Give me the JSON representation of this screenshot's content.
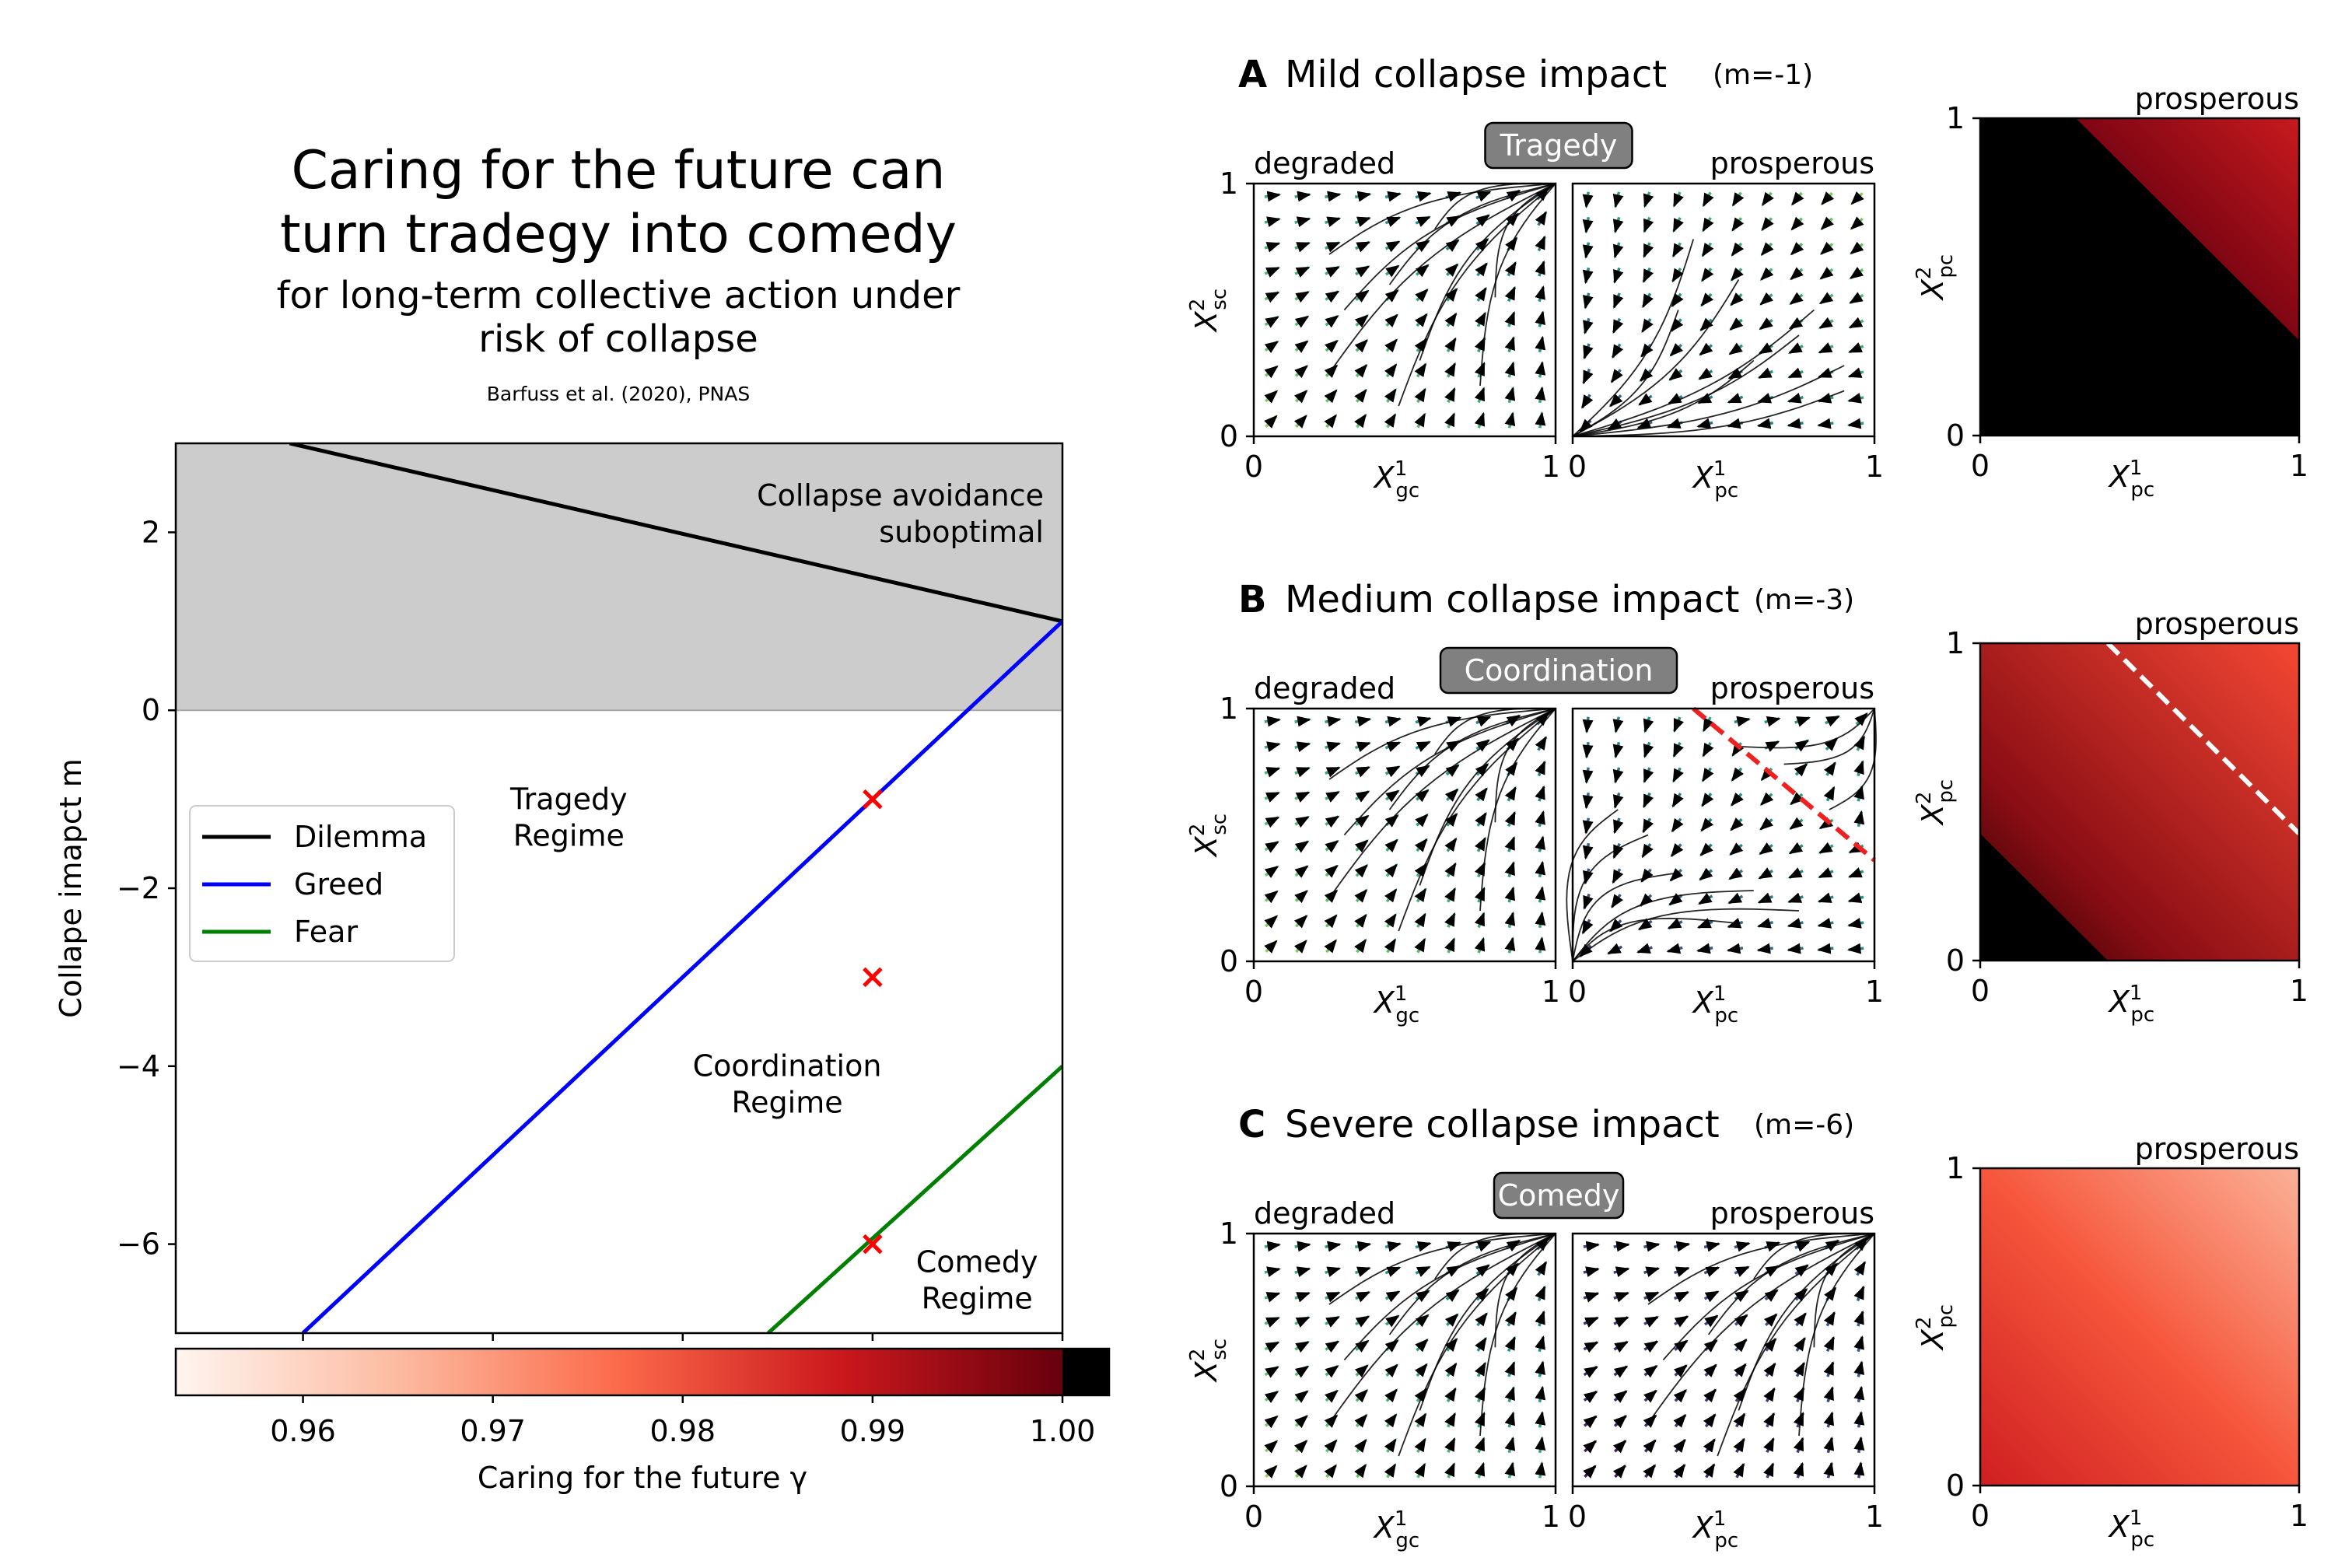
{
  "header": {
    "title_line1": "Caring for the future can",
    "title_line2": "turn tradegy into comedy",
    "subtitle_line1": "for long-term collective action under",
    "subtitle_line2": "risk of collapse",
    "citation": "Barfuss et al. (2020), PNAS"
  },
  "colors": {
    "dilemma": "#000000",
    "greed": "#0000ff",
    "fear": "#008000",
    "marker": "#ff0000",
    "shaded": "#cccccc",
    "badge": "#808080",
    "separatrix_main": "#ee2020",
    "separatrix_heat": "#ffffff"
  },
  "chart_data": [
    {
      "type": "line",
      "xlabel": "Caring for the future γ",
      "ylabel": "Collape imapct m",
      "xlim": [
        0.9533,
        1.0
      ],
      "ylim": [
        -7,
        3
      ],
      "xticks": [
        "0.96",
        "0.97",
        "0.98",
        "0.99",
        "1.00"
      ],
      "xtick_values": [
        0.96,
        0.97,
        0.98,
        0.99,
        1.0
      ],
      "yticks": [
        "2",
        "0",
        "−2",
        "−4",
        "−6"
      ],
      "ytick_values": [
        2,
        0,
        -2,
        -4,
        -6
      ],
      "shaded_region": {
        "y_from": 0,
        "y_to": 3,
        "label_line1": "Collapse avoidance",
        "label_line2": "suboptimal"
      },
      "series": [
        {
          "name": "Dilemma",
          "color": "#000000",
          "x": [
            0.9593,
            1.0
          ],
          "y": [
            3.0,
            1.0
          ]
        },
        {
          "name": "Greed",
          "color": "#0000ff",
          "x": [
            0.96,
            1.0
          ],
          "y": [
            -7.0,
            1.0
          ]
        },
        {
          "name": "Fear",
          "color": "#008000",
          "x": [
            0.9845,
            1.0
          ],
          "y": [
            -7.0,
            -4.0
          ]
        }
      ],
      "points": [
        {
          "x": 0.99,
          "y": -1
        },
        {
          "x": 0.99,
          "y": -3
        },
        {
          "x": 0.99,
          "y": -6
        }
      ],
      "annotations": [
        {
          "line1": "Tragedy",
          "line2": "Regime",
          "x": 0.974,
          "y": -1.2
        },
        {
          "line1": "Coordination",
          "line2": "Regime",
          "x": 0.9855,
          "y": -4.2
        },
        {
          "line1": "Comedy",
          "line2": "Regime",
          "x": 0.9955,
          "y": -6.4
        }
      ],
      "legend": {
        "placement": "center-left",
        "entries": [
          "Dilemma",
          "Greed",
          "Fear"
        ]
      },
      "colorbar": {
        "label": "Caring for the future γ",
        "range": [
          0.9533,
          1.0
        ],
        "colormap": "Reds",
        "ticks": [
          "0.96",
          "0.97",
          "0.98",
          "0.99",
          "1.00"
        ]
      }
    },
    {
      "type": "heatmap",
      "panel": "A",
      "title": "Mild collapse impact",
      "param": "(m=-1)",
      "regime_badge": "Tragedy",
      "degraded_label": "degraded",
      "prosperous_label": "prosperous",
      "axes": {
        "degraded": {
          "xlim": [
            0,
            1
          ],
          "ylim": [
            0,
            1
          ],
          "xtick_labels": [
            "0",
            "1"
          ],
          "ytick_labels": [
            "0",
            "1"
          ],
          "xlabel": "X_gc^1",
          "ylabel": "X_sc^2"
        },
        "prosperous": {
          "xlim": [
            0,
            1
          ],
          "ylim": [
            0,
            1
          ],
          "xtick_labels": [
            "0",
            "1"
          ],
          "xlabel": "X_pc^1"
        },
        "basin": {
          "xlim": [
            0,
            1
          ],
          "ylim": [
            0,
            1
          ],
          "xtick_labels": [
            "0",
            "1"
          ],
          "ytick_labels": [
            "0",
            "1"
          ],
          "xlabel": "X_pc^1",
          "ylabel": "X_pc^2",
          "title": "prosperous"
        }
      },
      "degraded_flow": "up-right toward (1,1)",
      "prosperous_flow": "down-left toward (0,0)",
      "basin": {
        "boundary_x_plus_y": 1.3,
        "below_boundary": "black",
        "above_boundary": "dark red to red",
        "separatrix": false
      }
    },
    {
      "type": "heatmap",
      "panel": "B",
      "title": "Medium collapse impact",
      "param": "(m=-3)",
      "regime_badge": "Coordination",
      "degraded_label": "degraded",
      "prosperous_label": "prosperous",
      "axes": {
        "degraded": {
          "xlim": [
            0,
            1
          ],
          "ylim": [
            0,
            1
          ],
          "xtick_labels": [
            "0",
            "1"
          ],
          "ytick_labels": [
            "0",
            "1"
          ],
          "xlabel": "X_gc^1",
          "ylabel": "X_sc^2"
        },
        "prosperous": {
          "xlim": [
            0,
            1
          ],
          "ylim": [
            0,
            1
          ],
          "xtick_labels": [
            "0",
            "1"
          ],
          "xlabel": "X_pc^1"
        },
        "basin": {
          "xlim": [
            0,
            1
          ],
          "ylim": [
            0,
            1
          ],
          "xtick_labels": [
            "0",
            "1"
          ],
          "ytick_labels": [
            "0",
            "1"
          ],
          "xlabel": "X_pc^1",
          "ylabel": "X_pc^2",
          "title": "prosperous"
        }
      },
      "degraded_flow": "up-right toward (1,1)",
      "prosperous_flow": "bistable: toward (0,0) below separatrix, toward (1,1) above",
      "separatrix_x_plus_y": 1.4,
      "basin": {
        "boundary_x_plus_y": 0.4,
        "below_boundary": "black",
        "above_boundary": "dark red to red",
        "separatrix": true
      }
    },
    {
      "type": "heatmap",
      "panel": "C",
      "title": "Severe collapse impact",
      "param": "(m=-6)",
      "regime_badge": "Comedy",
      "degraded_label": "degraded",
      "prosperous_label": "prosperous",
      "axes": {
        "degraded": {
          "xlim": [
            0,
            1
          ],
          "ylim": [
            0,
            1
          ],
          "xtick_labels": [
            "0",
            "1"
          ],
          "ytick_labels": [
            "0",
            "1"
          ],
          "xlabel": "X_gc^1",
          "ylabel": "X_sc^2"
        },
        "prosperous": {
          "xlim": [
            0,
            1
          ],
          "ylim": [
            0,
            1
          ],
          "xtick_labels": [
            "0",
            "1"
          ],
          "xlabel": "X_pc^1"
        },
        "basin": {
          "xlim": [
            0,
            1
          ],
          "ylim": [
            0,
            1
          ],
          "xtick_labels": [
            "0",
            "1"
          ],
          "ytick_labels": [
            "0",
            "1"
          ],
          "xlabel": "X_pc^1",
          "ylabel": "X_pc^2",
          "title": "prosperous"
        }
      },
      "degraded_flow": "up-right toward (1,1)",
      "prosperous_flow": "up-right toward (1,1)",
      "basin": {
        "boundary_x_plus_y": -1,
        "below_boundary": "black",
        "above_boundary": "red to light salmon",
        "separatrix": false
      }
    }
  ]
}
